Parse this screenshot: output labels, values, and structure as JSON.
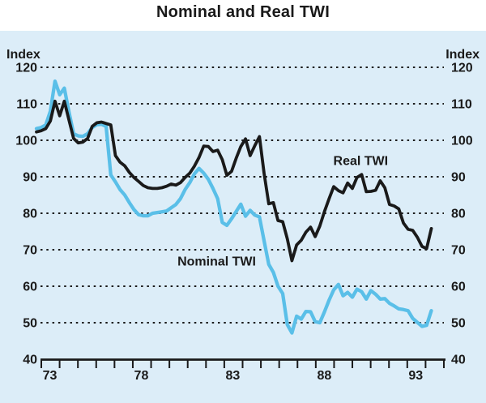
{
  "title": "Nominal and Real TWI",
  "colors": {
    "panel": "#dcedf8",
    "text": "#1a1a1a",
    "grid": "#1a1a1a",
    "axis": "#1a1a1a",
    "nominal": "#5abfe8",
    "real": "#1a1a1a"
  },
  "y_axis": {
    "unit_left": "Index",
    "unit_right": "Index"
  },
  "chart_data": {
    "type": "line",
    "title": "Nominal and Real TWI",
    "y_unit": "Index",
    "ylim": [
      40,
      120
    ],
    "y_ticks": [
      120,
      110,
      100,
      90,
      80,
      70,
      60,
      50,
      40
    ],
    "grid": "horizontal-dotted",
    "legend_position": "inline-annotations",
    "x_start": 1973.0,
    "x_step": 0.25,
    "x_axis": {
      "minor_tick_years_start": 1973,
      "minor_tick_years_end": 1995,
      "labeled_ticks": [
        {
          "year": 1973,
          "label": "73"
        },
        {
          "year": 1978,
          "label": "78"
        },
        {
          "year": 1983,
          "label": "83"
        },
        {
          "year": 1988,
          "label": "88"
        },
        {
          "year": 1993,
          "label": "93"
        }
      ]
    },
    "series": [
      {
        "name": "Nominal TWI",
        "color": "#5abfe8",
        "values": [
          103.2,
          103.5,
          104.2,
          108.0,
          116.2,
          112.5,
          114.3,
          107.8,
          101.8,
          101.2,
          101.1,
          101.8,
          103.5,
          104.3,
          104.4,
          103.8,
          90.5,
          88.6,
          86.5,
          85.0,
          82.9,
          81.0,
          79.6,
          79.3,
          79.3,
          80.0,
          80.2,
          80.4,
          80.6,
          81.5,
          82.4,
          84.0,
          86.5,
          88.4,
          90.8,
          92.3,
          91.0,
          89.3,
          86.8,
          84.0,
          77.5,
          76.7,
          78.5,
          80.5,
          82.5,
          79.2,
          80.8,
          79.5,
          79.0,
          72.5,
          66.0,
          63.8,
          60.0,
          58.0,
          49.5,
          47.2,
          51.8,
          51.0,
          53.1,
          53.0,
          50.3,
          50.0,
          53.0,
          56.2,
          59.0,
          60.5,
          57.4,
          58.3,
          57.0,
          59.2,
          58.5,
          56.5,
          58.8,
          57.8,
          56.5,
          56.6,
          55.3,
          54.6,
          53.8,
          53.6,
          53.3,
          51.2,
          50.1,
          49.0,
          49.3,
          53.3
        ]
      },
      {
        "name": "Real TWI",
        "color": "#1a1a1a",
        "values": [
          102.3,
          102.6,
          103.2,
          105.3,
          110.7,
          106.7,
          110.7,
          105.6,
          100.5,
          99.3,
          99.5,
          100.5,
          103.8,
          104.8,
          105.0,
          104.6,
          104.2,
          95.8,
          94.0,
          93.0,
          91.2,
          89.8,
          88.7,
          87.6,
          87.0,
          86.8,
          86.8,
          87.0,
          87.4,
          88.0,
          87.7,
          88.4,
          89.8,
          91.0,
          92.9,
          95.3,
          98.4,
          98.3,
          96.9,
          97.3,
          94.7,
          90.4,
          91.5,
          95.1,
          98.3,
          100.4,
          95.8,
          98.5,
          101.0,
          91.0,
          82.6,
          82.9,
          78.0,
          77.7,
          73.0,
          67.0,
          71.3,
          72.6,
          74.8,
          76.2,
          73.6,
          76.5,
          80.5,
          84.0,
          87.3,
          86.2,
          85.6,
          88.3,
          86.8,
          89.8,
          90.6,
          85.9,
          86.0,
          86.3,
          88.9,
          87.0,
          82.4,
          82.0,
          81.2,
          77.3,
          75.6,
          75.3,
          73.4,
          70.9,
          70.3,
          75.8
        ]
      }
    ],
    "annotations": [
      {
        "text": "Real TWI",
        "x": 1990.45,
        "y": 94.4
      },
      {
        "text": "Nominal TWI",
        "x": 1982.7,
        "y": 66.9
      }
    ]
  }
}
